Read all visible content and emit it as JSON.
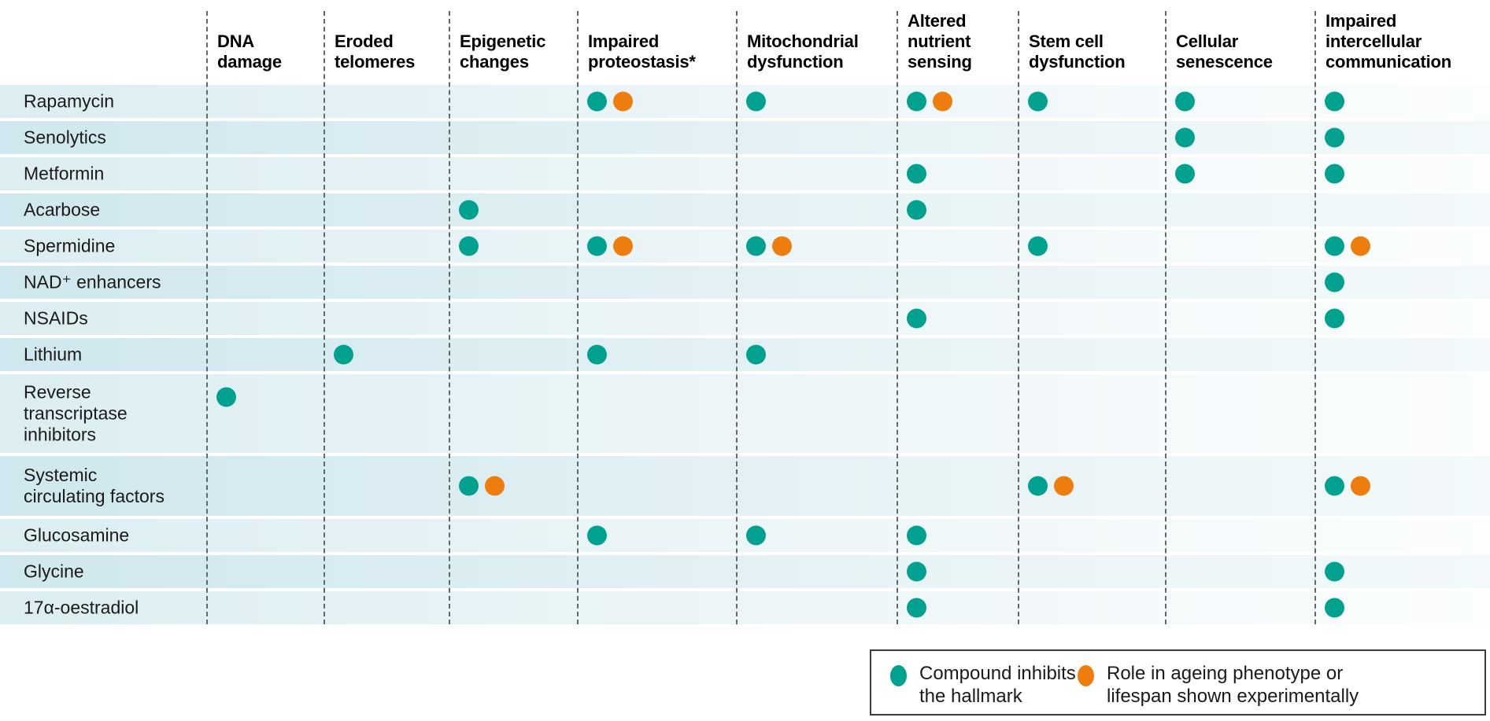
{
  "colors": {
    "inhibits": "#00a18f",
    "experimental": "#ed7d0c",
    "row_odd_left": "#dceef2",
    "row_even_left": "#cfe7ee",
    "divider": "#5f6a70"
  },
  "chart_data": {
    "type": "matrix",
    "title": "",
    "columns": [
      "DNA\ndamage",
      "Eroded\ntelomeres",
      "Epigenetic\nchanges",
      "Impaired\nproteostasis*",
      "Mitochondrial\ndysfunction",
      "Altered\nnutrient\nsensing",
      "Stem cell\ndysfunction",
      "Cellular\nsenescence",
      "Impaired\nintercellular\ncommunication"
    ],
    "rows": [
      {
        "label": "Rapamycin",
        "marks": [
          {
            "col": 3,
            "dots": [
              "inhibits",
              "experimental"
            ]
          },
          {
            "col": 4,
            "dots": [
              "inhibits"
            ]
          },
          {
            "col": 5,
            "dots": [
              "inhibits",
              "experimental"
            ]
          },
          {
            "col": 6,
            "dots": [
              "inhibits"
            ]
          },
          {
            "col": 7,
            "dots": [
              "inhibits"
            ]
          },
          {
            "col": 8,
            "dots": [
              "inhibits"
            ]
          }
        ]
      },
      {
        "label": "Senolytics",
        "marks": [
          {
            "col": 7,
            "dots": [
              "inhibits"
            ]
          },
          {
            "col": 8,
            "dots": [
              "inhibits"
            ]
          }
        ]
      },
      {
        "label": "Metformin",
        "marks": [
          {
            "col": 5,
            "dots": [
              "inhibits"
            ]
          },
          {
            "col": 7,
            "dots": [
              "inhibits"
            ]
          },
          {
            "col": 8,
            "dots": [
              "inhibits"
            ]
          }
        ]
      },
      {
        "label": "Acarbose",
        "marks": [
          {
            "col": 2,
            "dots": [
              "inhibits"
            ]
          },
          {
            "col": 5,
            "dots": [
              "inhibits"
            ]
          }
        ]
      },
      {
        "label": "Spermidine",
        "marks": [
          {
            "col": 2,
            "dots": [
              "inhibits"
            ]
          },
          {
            "col": 3,
            "dots": [
              "inhibits",
              "experimental"
            ]
          },
          {
            "col": 4,
            "dots": [
              "inhibits",
              "experimental"
            ]
          },
          {
            "col": 6,
            "dots": [
              "inhibits"
            ]
          },
          {
            "col": 8,
            "dots": [
              "inhibits",
              "experimental"
            ]
          }
        ]
      },
      {
        "label": "NAD⁺ enhancers",
        "marks": [
          {
            "col": 8,
            "dots": [
              "inhibits"
            ]
          }
        ]
      },
      {
        "label": "NSAIDs",
        "marks": [
          {
            "col": 5,
            "dots": [
              "inhibits"
            ]
          },
          {
            "col": 8,
            "dots": [
              "inhibits"
            ]
          }
        ]
      },
      {
        "label": "Lithium",
        "marks": [
          {
            "col": 1,
            "dots": [
              "inhibits"
            ]
          },
          {
            "col": 3,
            "dots": [
              "inhibits"
            ]
          },
          {
            "col": 4,
            "dots": [
              "inhibits"
            ]
          }
        ]
      },
      {
        "label": "Reverse\ntranscriptase\ninhibitors",
        "marks": [
          {
            "col": 0,
            "dots": [
              "inhibits"
            ]
          }
        ]
      },
      {
        "label": "Systemic\ncirculating factors",
        "marks": [
          {
            "col": 2,
            "dots": [
              "inhibits",
              "experimental"
            ]
          },
          {
            "col": 6,
            "dots": [
              "inhibits",
              "experimental"
            ]
          },
          {
            "col": 8,
            "dots": [
              "inhibits",
              "experimental"
            ]
          }
        ]
      },
      {
        "label": "Glucosamine",
        "marks": [
          {
            "col": 3,
            "dots": [
              "inhibits"
            ]
          },
          {
            "col": 4,
            "dots": [
              "inhibits"
            ]
          },
          {
            "col": 5,
            "dots": [
              "inhibits"
            ]
          }
        ]
      },
      {
        "label": "Glycine",
        "marks": [
          {
            "col": 5,
            "dots": [
              "inhibits"
            ]
          },
          {
            "col": 8,
            "dots": [
              "inhibits"
            ]
          }
        ]
      },
      {
        "label": "17α-oestradiol",
        "marks": [
          {
            "col": 5,
            "dots": [
              "inhibits"
            ]
          },
          {
            "col": 8,
            "dots": [
              "inhibits"
            ]
          }
        ]
      }
    ],
    "legend": [
      {
        "swatch": "inhibits",
        "label": "Compound inhibits\nthe hallmark"
      },
      {
        "swatch": "experimental",
        "label": "Role in ageing phenotype or\nlifespan shown experimentally"
      }
    ]
  }
}
